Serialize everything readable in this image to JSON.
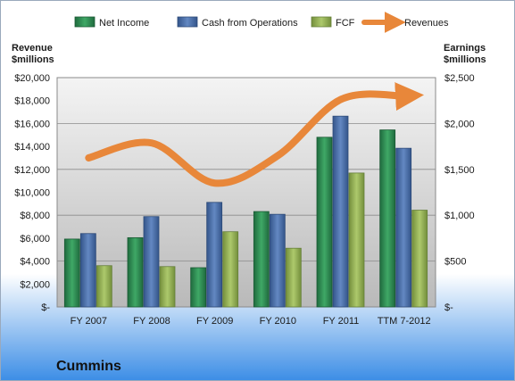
{
  "company": "Cummins",
  "colors": {
    "net_income": "#2e8b57",
    "cash_from_operations": "#4a6fa5",
    "fcf": "#9bbb59",
    "revenues": "#e8873a"
  },
  "chart_data": {
    "type": "bar",
    "categories": [
      "FY 2007",
      "FY 2008",
      "FY 2009",
      "FY 2010",
      "FY 2011",
      "TTM 7-2012"
    ],
    "series": [
      {
        "name": "Net Income",
        "axis": "right",
        "values": [
          740,
          755,
          428,
          1040,
          1850,
          1930
        ]
      },
      {
        "name": "Cash from Operations",
        "axis": "right",
        "values": [
          800,
          985,
          1140,
          1010,
          2080,
          1730
        ]
      },
      {
        "name": "FCF",
        "axis": "right",
        "values": [
          450,
          440,
          820,
          640,
          1460,
          1055
        ]
      },
      {
        "name": "Revenues",
        "type": "line",
        "axis": "left",
        "values": [
          13000,
          14300,
          10800,
          13200,
          18100,
          18400
        ]
      }
    ],
    "ylabel_left": "Revenue $millions",
    "ylabel_right": "Earnings $millions",
    "ylim_left": [
      0,
      20000
    ],
    "ylim_right": [
      0,
      2500
    ],
    "yticks_left": [
      "$-",
      "$2,000",
      "$4,000",
      "$6,000",
      "$8,000",
      "$10,000",
      "$12,000",
      "$14,000",
      "$16,000",
      "$18,000",
      "$20,000"
    ],
    "yticks_right": [
      "$-",
      "$500",
      "$1,000",
      "$1,500",
      "$2,000",
      "$2,500"
    ],
    "grid": true,
    "legend": "top"
  }
}
